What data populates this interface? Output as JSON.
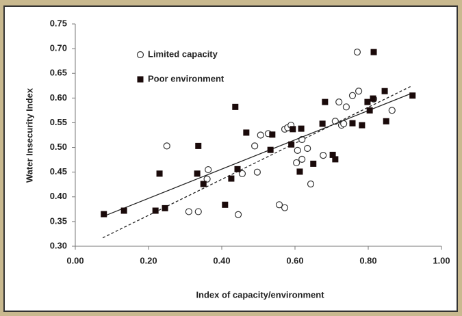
{
  "chart_data": {
    "type": "scatter",
    "x_label": "Index of capacity/environment",
    "y_label": "Water Insecurity Index",
    "xlim": [
      0,
      1.0
    ],
    "ylim": [
      0.3,
      0.75
    ],
    "xticks": [
      {
        "value": 0,
        "label": "0.00"
      },
      {
        "value": 0.2,
        "label": "0.20"
      },
      {
        "value": 0.4,
        "label": "0.40"
      },
      {
        "value": 0.6,
        "label": "0.60"
      },
      {
        "value": 0.8,
        "label": "0.80"
      },
      {
        "value": 1.0,
        "label": "1.00"
      }
    ],
    "yticks": [
      {
        "value": 0.3,
        "label": "0.30"
      },
      {
        "value": 0.35,
        "label": "0.35"
      },
      {
        "value": 0.4,
        "label": "0.40"
      },
      {
        "value": 0.45,
        "label": "0.45"
      },
      {
        "value": 0.5,
        "label": "0.50"
      },
      {
        "value": 0.55,
        "label": "0.55"
      },
      {
        "value": 0.6,
        "label": "0.60"
      },
      {
        "value": 0.65,
        "label": "0.65"
      },
      {
        "value": 0.7,
        "label": "0.70"
      },
      {
        "value": 0.75,
        "label": "0.75"
      }
    ],
    "grid": false,
    "legend": "upper-left",
    "series": [
      {
        "name": "Limited capacity",
        "marker": "open-circle",
        "color": "#333333",
        "x": [
          0.25,
          0.31,
          0.336,
          0.36,
          0.363,
          0.445,
          0.456,
          0.49,
          0.497,
          0.506,
          0.527,
          0.557,
          0.572,
          0.572,
          0.58,
          0.589,
          0.604,
          0.607,
          0.619,
          0.619,
          0.634,
          0.643,
          0.677,
          0.71,
          0.72,
          0.727,
          0.733,
          0.74,
          0.757,
          0.77,
          0.774,
          0.815,
          0.865
        ],
        "y": [
          0.503,
          0.37,
          0.37,
          0.436,
          0.455,
          0.364,
          0.447,
          0.503,
          0.45,
          0.525,
          0.528,
          0.384,
          0.378,
          0.537,
          0.54,
          0.545,
          0.469,
          0.494,
          0.516,
          0.476,
          0.498,
          0.426,
          0.484,
          0.553,
          0.592,
          0.545,
          0.548,
          0.582,
          0.605,
          0.693,
          0.614,
          0.598,
          0.575
        ],
        "trendline": {
          "style": "dashed",
          "x": [
            0.075,
            0.92
          ],
          "y": [
            0.317,
            0.625
          ]
        }
      },
      {
        "name": "Poor environment",
        "marker": "filled-square",
        "color": "#1a0a0a",
        "x": [
          0.078,
          0.133,
          0.219,
          0.23,
          0.245,
          0.336,
          0.333,
          0.35,
          0.409,
          0.426,
          0.437,
          0.443,
          0.467,
          0.533,
          0.538,
          0.59,
          0.594,
          0.617,
          0.613,
          0.65,
          0.675,
          0.682,
          0.703,
          0.71,
          0.757,
          0.783,
          0.798,
          0.804,
          0.813,
          0.815,
          0.845,
          0.849,
          0.921
        ],
        "y": [
          0.365,
          0.372,
          0.372,
          0.447,
          0.377,
          0.503,
          0.447,
          0.426,
          0.384,
          0.437,
          0.582,
          0.456,
          0.53,
          0.495,
          0.526,
          0.506,
          0.537,
          0.538,
          0.451,
          0.467,
          0.548,
          0.592,
          0.485,
          0.476,
          0.549,
          0.545,
          0.592,
          0.575,
          0.599,
          0.693,
          0.614,
          0.553,
          0.605
        ],
        "trendline": {
          "style": "solid",
          "x": [
            0.075,
            0.92
          ],
          "y": [
            0.36,
            0.61
          ]
        }
      }
    ]
  }
}
